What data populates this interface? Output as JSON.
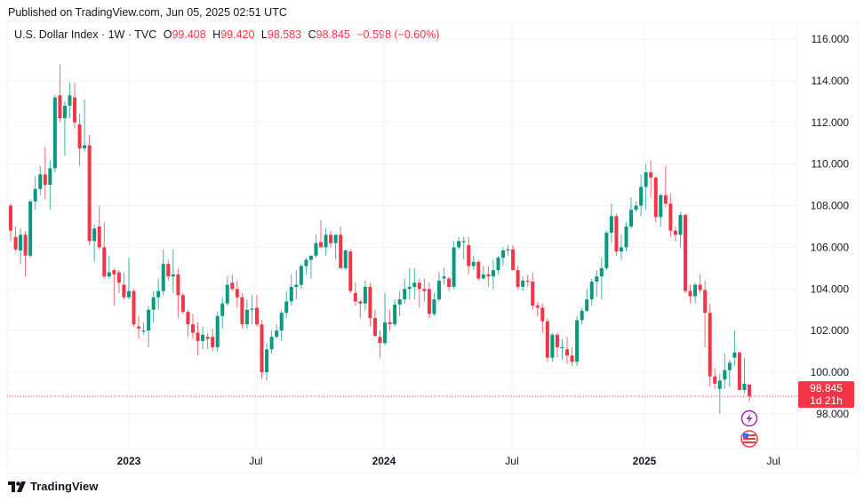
{
  "published": "Published on TradingView.com, Jun 05, 2025 02:51 UTC",
  "legend": {
    "symbol": "U.S. Dollar Index · 1W · TVC",
    "open_label": "O",
    "open": "99.408",
    "high_label": "H",
    "high": "99.420",
    "low_label": "L",
    "low": "98.583",
    "close_label": "C",
    "close": "98.845",
    "change": "−0.598 (−0.60%)"
  },
  "price_tag": {
    "price": "98.845",
    "countdown": "1d 21h"
  },
  "logo": "TradingView",
  "colors": {
    "up": "#089981",
    "down": "#f23645",
    "grid": "#f0f3fa",
    "event": "#9c27b0"
  },
  "chart_data": {
    "type": "candlestick",
    "title": "U.S. Dollar Index · 1W · TVC",
    "ylim": [
      96.2,
      116.6
    ],
    "y_ticks": [
      "116.000",
      "114.000",
      "112.000",
      "110.000",
      "108.000",
      "106.000",
      "104.000",
      "102.000",
      "100.000",
      "98.000"
    ],
    "y_tick_values": [
      116,
      114,
      112,
      110,
      108,
      106,
      104,
      102,
      100,
      98
    ],
    "x_ticks": [
      {
        "label": "2023",
        "week_index": 24
      },
      {
        "label": "Jul",
        "week_index": 49.8
      },
      {
        "label": "2024",
        "week_index": 75.8
      },
      {
        "label": "Jul",
        "week_index": 101.8
      },
      {
        "label": "2025",
        "week_index": 128.7
      },
      {
        "label": "Jul",
        "week_index": 154.9
      }
    ],
    "last_price": 98.845,
    "ohlc_fields": [
      "open",
      "high",
      "low",
      "close"
    ],
    "ohlc": [
      [
        108.0,
        108.1,
        106.3,
        106.8
      ],
      [
        106.5,
        107.0,
        105.8,
        105.9
      ],
      [
        105.85,
        106.9,
        105.2,
        106.6
      ],
      [
        106.6,
        106.8,
        104.6,
        105.6
      ],
      [
        105.6,
        108.3,
        105.5,
        108.2
      ],
      [
        108.2,
        109.4,
        107.8,
        108.8
      ],
      [
        108.8,
        109.9,
        108.5,
        109.5
      ],
      [
        109.5,
        110.8,
        108.3,
        109.0
      ],
      [
        109.0,
        110.2,
        107.8,
        109.8
      ],
      [
        109.8,
        113.3,
        109.6,
        113.2
      ],
      [
        113.3,
        114.78,
        112.0,
        112.2
      ],
      [
        112.2,
        113.0,
        110.4,
        112.8
      ],
      [
        112.8,
        113.9,
        112.2,
        113.3
      ],
      [
        113.2,
        113.9,
        111.7,
        112.0
      ],
      [
        111.9,
        112.4,
        109.9,
        110.75
      ],
      [
        110.75,
        113.1,
        110.6,
        110.9
      ],
      [
        110.9,
        111.4,
        106.1,
        106.3
      ],
      [
        106.3,
        107.1,
        105.3,
        106.9
      ],
      [
        107.0,
        108.0,
        105.9,
        106.0
      ],
      [
        106.0,
        107.2,
        104.5,
        104.6
      ],
      [
        104.6,
        105.6,
        104.5,
        104.8
      ],
      [
        104.9,
        105.0,
        103.2,
        104.7
      ],
      [
        104.8,
        104.9,
        103.8,
        104.3
      ],
      [
        104.2,
        104.8,
        103.5,
        103.6
      ],
      [
        103.6,
        105.5,
        103.5,
        103.9
      ],
      [
        103.9,
        104.0,
        102.2,
        102.3
      ],
      [
        102.2,
        102.7,
        101.6,
        102.1
      ],
      [
        102.0,
        102.4,
        101.8,
        102.0
      ],
      [
        102.0,
        103.2,
        101.2,
        103.0
      ],
      [
        103.0,
        103.9,
        102.4,
        103.6
      ],
      [
        103.6,
        104.5,
        103.0,
        103.9
      ],
      [
        103.9,
        105.9,
        103.7,
        105.2
      ],
      [
        105.2,
        105.4,
        104.4,
        104.6
      ],
      [
        104.6,
        105.9,
        103.8,
        104.7
      ],
      [
        104.7,
        105.0,
        102.6,
        103.7
      ],
      [
        103.7,
        103.8,
        102.8,
        102.9
      ],
      [
        102.9,
        103.0,
        101.7,
        102.3
      ],
      [
        102.3,
        102.8,
        101.6,
        101.9
      ],
      [
        101.9,
        102.4,
        100.8,
        101.5
      ],
      [
        101.5,
        102.2,
        101.1,
        101.8
      ],
      [
        101.7,
        101.9,
        101.1,
        101.6
      ],
      [
        101.7,
        102.1,
        101.0,
        101.2
      ],
      [
        101.2,
        102.9,
        101.0,
        102.7
      ],
      [
        102.7,
        103.6,
        102.1,
        103.3
      ],
      [
        103.3,
        104.6,
        103.2,
        104.2
      ],
      [
        104.3,
        104.7,
        103.9,
        104.0
      ],
      [
        104.0,
        104.4,
        103.1,
        103.6
      ],
      [
        103.6,
        103.8,
        102.1,
        102.3
      ],
      [
        102.3,
        103.5,
        102.1,
        103.0
      ],
      [
        103.0,
        103.7,
        102.3,
        103.05
      ],
      [
        103.1,
        103.7,
        102.2,
        102.3
      ],
      [
        102.3,
        102.5,
        99.7,
        100.0
      ],
      [
        100.0,
        101.4,
        99.6,
        101.1
      ],
      [
        101.1,
        102.0,
        100.9,
        101.7
      ],
      [
        101.7,
        102.3,
        101.6,
        102.0
      ],
      [
        102.0,
        103.0,
        101.5,
        102.85
      ],
      [
        102.85,
        103.9,
        102.6,
        103.4
      ],
      [
        103.4,
        104.7,
        103.2,
        104.1
      ],
      [
        104.1,
        104.9,
        103.5,
        104.2
      ],
      [
        104.2,
        105.2,
        104.0,
        105.1
      ],
      [
        105.1,
        105.5,
        104.7,
        105.4
      ],
      [
        105.4,
        105.6,
        104.5,
        105.6
      ],
      [
        105.6,
        106.6,
        105.5,
        106.2
      ],
      [
        106.25,
        107.3,
        106.0,
        106.0
      ],
      [
        106.0,
        106.9,
        105.6,
        106.6
      ],
      [
        106.6,
        106.8,
        106.0,
        106.2
      ],
      [
        106.2,
        106.6,
        105.4,
        106.6
      ],
      [
        106.6,
        107.0,
        105.0,
        105.0
      ],
      [
        105.0,
        105.9,
        104.9,
        105.85
      ],
      [
        105.8,
        105.9,
        103.8,
        103.9
      ],
      [
        103.8,
        104.3,
        103.2,
        103.4
      ],
      [
        103.4,
        103.5,
        102.6,
        103.3
      ],
      [
        103.3,
        104.4,
        103.0,
        104.1
      ],
      [
        104.1,
        104.3,
        102.2,
        102.6
      ],
      [
        102.6,
        103.0,
        101.7,
        101.75
      ],
      [
        101.7,
        102.0,
        100.7,
        101.4
      ],
      [
        101.4,
        103.8,
        101.3,
        102.4
      ],
      [
        102.4,
        103.0,
        102.0,
        102.3
      ],
      [
        102.3,
        103.5,
        102.2,
        103.25
      ],
      [
        103.25,
        103.9,
        102.7,
        103.5
      ],
      [
        103.5,
        104.5,
        103.3,
        104.0
      ],
      [
        104.0,
        105.0,
        103.5,
        104.1
      ],
      [
        104.1,
        105.0,
        103.5,
        104.3
      ],
      [
        104.3,
        104.5,
        103.1,
        104.0
      ],
      [
        104.0,
        104.5,
        103.4,
        103.9
      ],
      [
        104.0,
        104.3,
        102.6,
        102.8
      ],
      [
        102.8,
        103.8,
        102.7,
        103.5
      ],
      [
        103.5,
        104.8,
        103.4,
        104.4
      ],
      [
        104.5,
        105.0,
        104.2,
        104.6
      ],
      [
        104.5,
        104.6,
        103.9,
        104.1
      ],
      [
        104.1,
        106.3,
        104.0,
        106.0
      ],
      [
        106.0,
        106.5,
        105.9,
        106.3
      ],
      [
        106.3,
        106.5,
        105.4,
        106.3
      ],
      [
        106.1,
        106.5,
        104.7,
        105.1
      ],
      [
        105.1,
        105.6,
        104.9,
        105.3
      ],
      [
        105.3,
        105.4,
        104.4,
        104.5
      ],
      [
        104.5,
        105.1,
        104.5,
        104.7
      ],
      [
        104.7,
        105.1,
        104.1,
        104.6
      ],
      [
        104.6,
        105.4,
        104.0,
        104.9
      ],
      [
        104.9,
        105.6,
        104.7,
        105.5
      ],
      [
        105.5,
        106.0,
        105.1,
        105.85
      ],
      [
        105.85,
        106.1,
        105.6,
        105.9
      ],
      [
        105.9,
        106.1,
        104.9,
        104.9
      ],
      [
        104.9,
        105.1,
        104.0,
        104.1
      ],
      [
        104.1,
        104.6,
        103.9,
        104.4
      ],
      [
        104.4,
        104.7,
        104.1,
        104.35
      ],
      [
        104.35,
        104.8,
        103.0,
        103.2
      ],
      [
        103.2,
        103.4,
        102.7,
        103.1
      ],
      [
        103.1,
        103.3,
        101.9,
        102.45
      ],
      [
        102.45,
        102.6,
        100.5,
        100.7
      ],
      [
        100.7,
        101.9,
        100.5,
        101.8
      ],
      [
        101.8,
        101.9,
        100.7,
        101.2
      ],
      [
        101.2,
        101.6,
        100.6,
        101.2
      ],
      [
        101.1,
        101.7,
        100.4,
        100.8
      ],
      [
        100.8,
        101.2,
        100.3,
        100.5
      ],
      [
        100.5,
        102.7,
        100.3,
        102.5
      ],
      [
        102.5,
        103.1,
        102.3,
        102.95
      ],
      [
        102.95,
        104.0,
        102.9,
        103.5
      ],
      [
        103.5,
        104.5,
        103.2,
        104.35
      ],
      [
        104.35,
        104.9,
        103.6,
        104.6
      ],
      [
        104.6,
        105.5,
        103.5,
        105.0
      ],
      [
        105.0,
        106.8,
        104.9,
        106.7
      ],
      [
        106.7,
        108.1,
        106.2,
        107.5
      ],
      [
        107.5,
        107.6,
        105.6,
        105.8
      ],
      [
        105.8,
        106.6,
        105.4,
        106.0
      ],
      [
        106.0,
        107.2,
        105.8,
        107.0
      ],
      [
        107.0,
        108.4,
        106.9,
        107.8
      ],
      [
        107.8,
        108.2,
        107.7,
        108.0
      ],
      [
        108.0,
        109.5,
        107.5,
        108.9
      ],
      [
        108.9,
        110.0,
        107.8,
        109.6
      ],
      [
        109.6,
        110.17,
        108.4,
        109.35
      ],
      [
        109.35,
        109.4,
        107.2,
        107.45
      ],
      [
        107.45,
        108.6,
        107.0,
        108.5
      ],
      [
        108.5,
        109.9,
        107.9,
        108.1
      ],
      [
        108.1,
        108.6,
        106.5,
        106.8
      ],
      [
        106.8,
        107.0,
        106.3,
        106.6
      ],
      [
        106.6,
        107.7,
        106.0,
        107.55
      ],
      [
        107.55,
        107.6,
        103.8,
        103.9
      ],
      [
        103.9,
        104.2,
        103.3,
        103.65
      ],
      [
        103.65,
        104.3,
        103.3,
        104.2
      ],
      [
        104.2,
        104.7,
        103.8,
        103.95
      ],
      [
        103.95,
        104.4,
        101.2,
        102.85
      ],
      [
        102.85,
        103.3,
        99.3,
        99.8
      ],
      [
        99.8,
        100.2,
        99.2,
        99.45
      ],
      [
        99.2,
        99.9,
        98.0,
        99.6
      ],
      [
        99.65,
        100.9,
        99.2,
        100.1
      ],
      [
        100.1,
        100.6,
        99.3,
        100.45
      ],
      [
        100.7,
        102.0,
        100.3,
        100.95
      ],
      [
        100.95,
        101.0,
        99.15,
        99.15
      ],
      [
        99.15,
        100.7,
        99.0,
        99.45
      ],
      [
        99.408,
        99.42,
        98.583,
        98.845
      ]
    ]
  }
}
